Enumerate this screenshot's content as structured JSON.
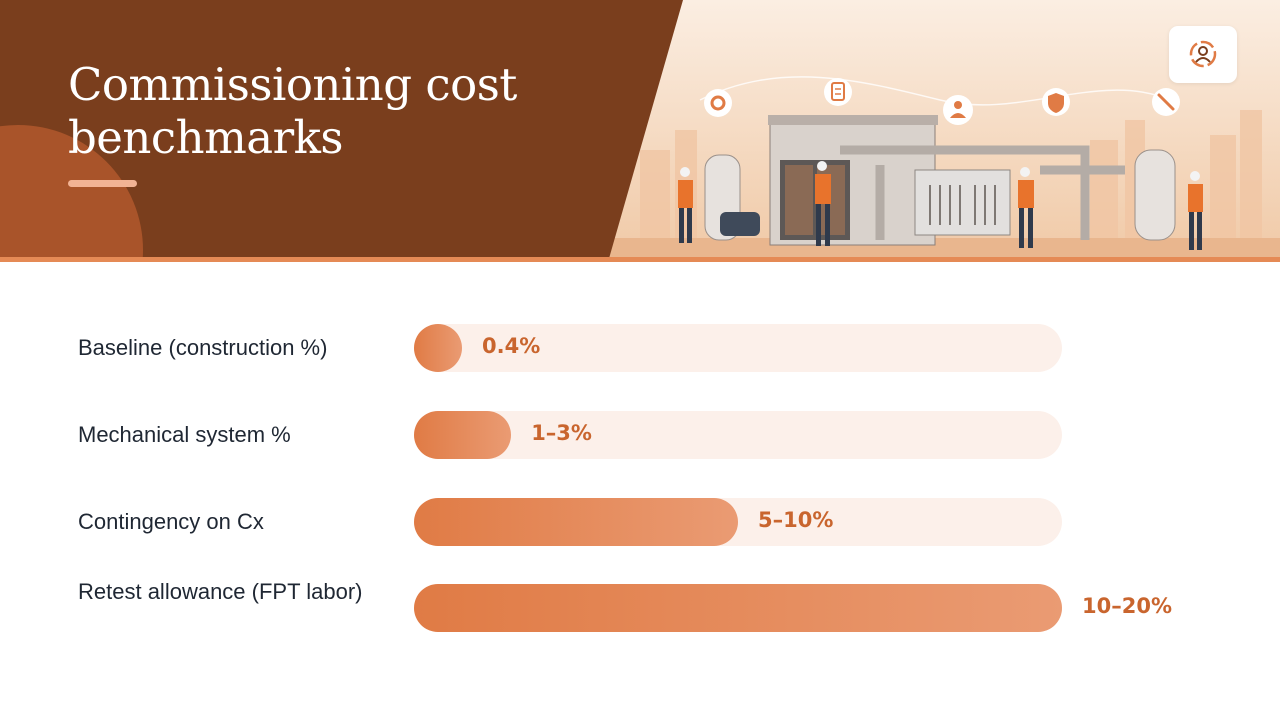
{
  "slide": {
    "title": "Commissioning cost benchmarks"
  },
  "icons": {
    "header_icons": [
      "gear-icon",
      "clipboard-icon",
      "person-icon",
      "shield-icon",
      "wrench-icon"
    ],
    "logo": "logo-icon"
  },
  "colors": {
    "header_brown": "#7a3e1d",
    "accent": "#e58a55",
    "bar_fill": "#e07b45",
    "bar_track": "#fcf0ea",
    "value_text": "#c9652e"
  },
  "chart_data": {
    "type": "bar",
    "orientation": "horizontal",
    "categories": [
      "Baseline (construction %)",
      "Mechanical system %",
      "Contingency on Cx",
      "Retest allowance (FPT labor)"
    ],
    "value_labels": [
      "0.4%",
      "1–3%",
      "5–10%",
      "10–20%"
    ],
    "values": [
      0.4,
      3,
      10,
      20
    ],
    "xlim": [
      0,
      20
    ],
    "grid": false
  }
}
